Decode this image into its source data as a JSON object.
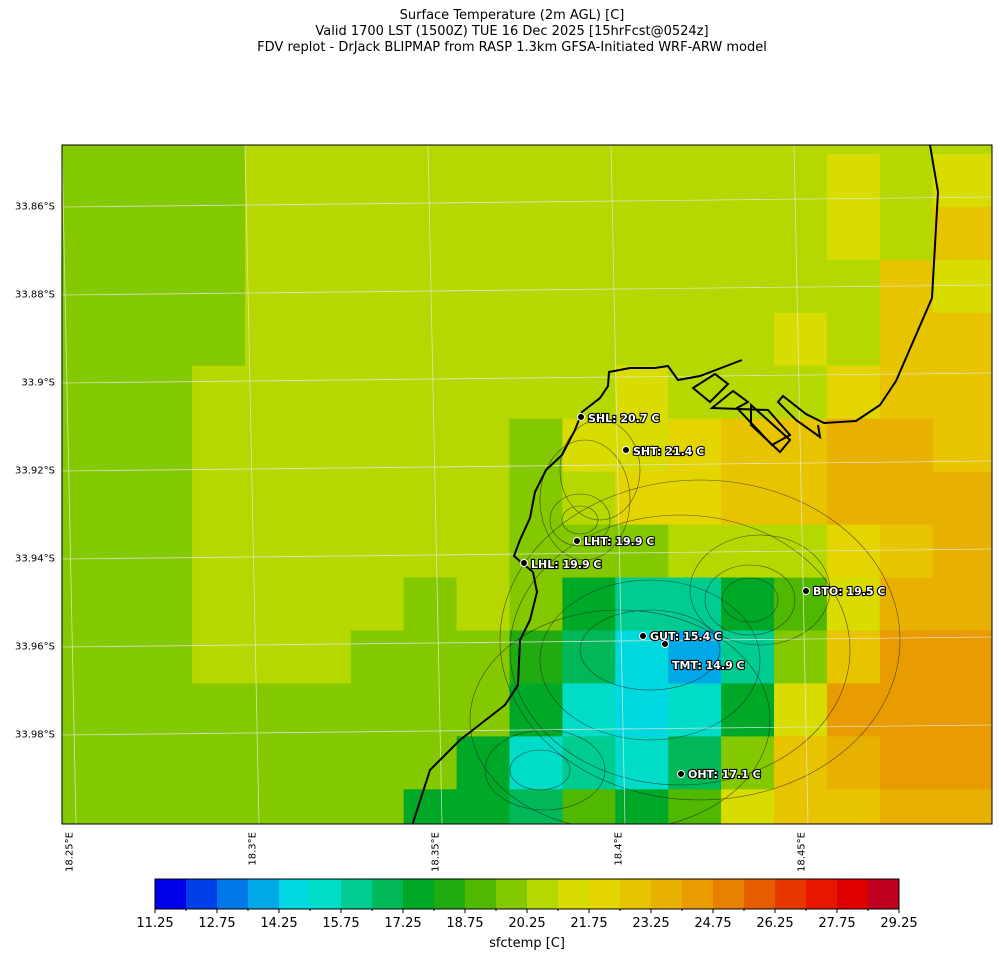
{
  "title": {
    "line1": "Surface Temperature (2m AGL) [C]",
    "line2": "Valid 1700 LST (1500Z) TUE 16 Dec 2025 [15hrFcst@0524z]",
    "line3": "FDV replot - DrJack BLIPMAP from RASP 1.3km GFSA-Initiated WRF-ARW model"
  },
  "axes": {
    "lat_ticks": [
      "33.86°S",
      "33.88°S",
      "33.9°S",
      "33.92°S",
      "33.94°S",
      "33.96°S",
      "33.98°S"
    ],
    "lon_ticks": [
      "18.25°E",
      "18.3°E",
      "18.35°E",
      "18.4°E",
      "18.45°E"
    ]
  },
  "stations": [
    {
      "code": "SHL",
      "label": "SHL: 20.7 C",
      "value": 20.7
    },
    {
      "code": "SHT",
      "label": "SHT: 21.4 C",
      "value": 21.4
    },
    {
      "code": "LHT",
      "label": "LHT: 19.9 C",
      "value": 19.9
    },
    {
      "code": "LHL",
      "label": "LHL: 19.9 C",
      "value": 19.9
    },
    {
      "code": "BTO",
      "label": "BTO: 19.5 C",
      "value": 19.5
    },
    {
      "code": "GUT",
      "label": "GUT: 15.4 C",
      "value": 15.4
    },
    {
      "code": "TMT",
      "label": "TMT: 14.9 C",
      "value": 14.9
    },
    {
      "code": "OHT",
      "label": "OHT: 17.1 C",
      "value": 17.1
    }
  ],
  "colorbar": {
    "label": "sfctemp [C]",
    "tick_labels": [
      "11.25",
      "12.75",
      "14.25",
      "15.75",
      "17.25",
      "18.75",
      "20.25",
      "21.75",
      "23.25",
      "24.75",
      "26.25",
      "27.75",
      "29.25"
    ],
    "min": 11.25,
    "max": 29.25,
    "step": 0.75,
    "colors": [
      "#0000e8",
      "#0040e8",
      "#0078e8",
      "#00a8e8",
      "#00d8e0",
      "#00dcc8",
      "#00cc90",
      "#00b858",
      "#00a828",
      "#20ac10",
      "#50b800",
      "#84c800",
      "#b4d800",
      "#d8dc00",
      "#e4d400",
      "#e8c400",
      "#e8b000",
      "#e89c00",
      "#e88000",
      "#e85c00",
      "#e83800",
      "#e81800",
      "#e00000",
      "#c00020"
    ]
  },
  "chart_data": {
    "type": "heatmap",
    "variable": "sfctemp [C]",
    "x_range": [
      "18.25°E",
      "18.45°E"
    ],
    "y_range": [
      "33.98°S",
      "33.86°S"
    ],
    "grid_note_rows": "north to south",
    "grid": [
      [
        19.875,
        19.875,
        19.875,
        19.875,
        20.625,
        20.625,
        20.625,
        20.625,
        20.625,
        20.625,
        20.625,
        20.625,
        20.625,
        20.625,
        20.625,
        20.625,
        20.625,
        20.625,
        20.625
      ],
      [
        19.875,
        19.875,
        19.875,
        19.875,
        20.625,
        20.625,
        20.625,
        20.625,
        20.625,
        20.625,
        20.625,
        20.625,
        20.625,
        20.625,
        20.625,
        21.375,
        20.625,
        21.375,
        21.375
      ],
      [
        19.875,
        19.875,
        19.875,
        19.875,
        20.625,
        20.625,
        20.625,
        20.625,
        20.625,
        20.625,
        20.625,
        20.625,
        20.625,
        20.625,
        20.625,
        21.375,
        20.625,
        22.875,
        22.875
      ],
      [
        19.875,
        19.875,
        19.875,
        19.875,
        20.625,
        20.625,
        20.625,
        20.625,
        20.625,
        20.625,
        20.625,
        20.625,
        20.625,
        20.625,
        20.625,
        20.625,
        22.875,
        21.375,
        21.375
      ],
      [
        19.875,
        19.875,
        19.875,
        19.875,
        20.625,
        20.625,
        20.625,
        20.625,
        20.625,
        20.625,
        20.625,
        20.625,
        20.625,
        20.625,
        21.375,
        20.625,
        22.875,
        22.875,
        22.875
      ],
      [
        19.875,
        19.875,
        19.875,
        20.625,
        20.625,
        20.625,
        20.625,
        20.625,
        20.625,
        20.625,
        20.625,
        21.375,
        20.625,
        20.625,
        20.625,
        22.125,
        22.875,
        22.875,
        22.875
      ],
      [
        19.875,
        19.875,
        19.875,
        20.625,
        20.625,
        20.625,
        20.625,
        20.625,
        20.625,
        19.875,
        21.375,
        21.375,
        22.125,
        22.875,
        22.875,
        23.625,
        23.625,
        22.875,
        22.875
      ],
      [
        19.875,
        19.875,
        19.875,
        20.625,
        20.625,
        20.625,
        20.625,
        20.625,
        20.625,
        19.875,
        20.625,
        22.125,
        22.125,
        22.875,
        22.875,
        23.625,
        23.625,
        23.625,
        23.625
      ],
      [
        19.875,
        19.875,
        19.875,
        20.625,
        20.625,
        20.625,
        20.625,
        20.625,
        20.625,
        19.875,
        19.875,
        19.875,
        20.625,
        20.625,
        20.625,
        22.125,
        22.875,
        23.625,
        23.625
      ],
      [
        19.875,
        19.875,
        19.875,
        20.625,
        20.625,
        20.625,
        20.625,
        19.875,
        20.625,
        19.875,
        17.625,
        16.125,
        16.125,
        17.625,
        19.125,
        21.375,
        23.625,
        23.625,
        23.625
      ],
      [
        19.875,
        19.875,
        19.875,
        20.625,
        20.625,
        20.625,
        19.875,
        19.875,
        19.875,
        18.375,
        16.875,
        14.625,
        13.875,
        16.125,
        19.875,
        22.875,
        24.375,
        24.375,
        24.375
      ],
      [
        19.875,
        19.875,
        19.875,
        19.875,
        19.875,
        19.875,
        19.875,
        19.875,
        19.875,
        17.625,
        15.375,
        14.625,
        15.375,
        17.625,
        21.375,
        24.375,
        24.375,
        24.375,
        24.375
      ],
      [
        19.875,
        19.875,
        19.875,
        19.875,
        19.875,
        19.875,
        19.875,
        19.875,
        17.625,
        15.375,
        16.125,
        15.375,
        16.875,
        19.875,
        22.875,
        23.625,
        24.375,
        24.375,
        24.375
      ],
      [
        19.875,
        19.875,
        19.875,
        19.875,
        19.875,
        19.875,
        19.875,
        17.625,
        17.625,
        16.875,
        19.125,
        17.625,
        19.125,
        21.375,
        22.875,
        22.875,
        23.625,
        23.625,
        23.625
      ]
    ]
  }
}
